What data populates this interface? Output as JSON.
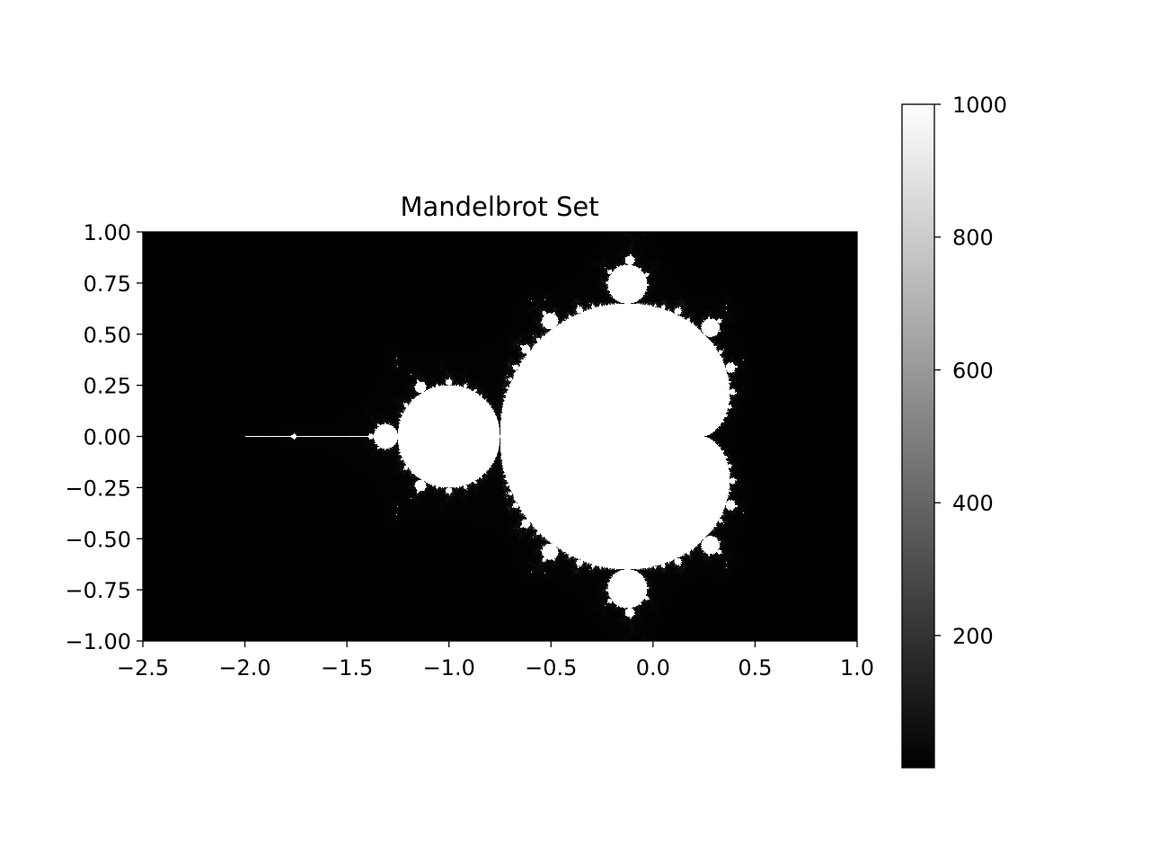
{
  "chart_data": {
    "type": "heatmap",
    "title": "Mandelbrot Set",
    "xlabel": "",
    "ylabel": "",
    "xlim": [
      -2.5,
      1.0
    ],
    "ylim": [
      -1.0,
      1.0
    ],
    "max_iter": 1000,
    "colormap": "gray",
    "x_ticks": [
      -2.5,
      -2.0,
      -1.5,
      -1.0,
      -0.5,
      0.0,
      0.5,
      1.0
    ],
    "x_tick_labels": [
      "−2.5",
      "−2.0",
      "−1.5",
      "−1.0",
      "−0.5",
      "0.0",
      "0.5",
      "1.0"
    ],
    "y_ticks": [
      1.0,
      0.75,
      0.5,
      0.25,
      0.0,
      -0.25,
      -0.5,
      -0.75,
      -1.0
    ],
    "y_tick_labels": [
      "1.00",
      "0.75",
      "0.50",
      "0.25",
      "0.00",
      "−0.25",
      "−0.50",
      "−0.75",
      "−1.00"
    ],
    "colorbar": {
      "range": [
        1,
        1000
      ],
      "ticks": [
        200,
        400,
        600,
        800,
        1000
      ],
      "tick_labels": [
        "200",
        "400",
        "600",
        "800",
        "1000"
      ]
    },
    "colors": {
      "low": "#000000",
      "high": "#ffffff"
    }
  }
}
